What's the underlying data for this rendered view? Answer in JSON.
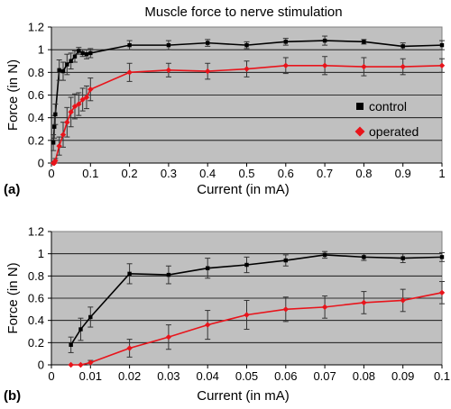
{
  "title": "Muscle force to nerve stimulation",
  "chart_data": [
    {
      "type": "line",
      "panel_label": "(a)",
      "title": "Muscle force to nerve stimulation",
      "xlabel": "Current (in mA)",
      "ylabel": "Force (in N)",
      "xlim": [
        0,
        1
      ],
      "ylim": [
        0,
        1.2
      ],
      "xticks": [
        "0",
        "0.1",
        "0.2",
        "0.3",
        "0.4",
        "0.5",
        "0.6",
        "0.7",
        "0.8",
        "0.9",
        "1"
      ],
      "yticks": [
        "0",
        "0.2",
        "0.4",
        "0.6",
        "0.8",
        "1",
        "1.2"
      ],
      "grid": true,
      "legend_position": "right",
      "series": [
        {
          "name": "control",
          "color": "#000000",
          "marker": "square",
          "x": [
            0.005,
            0.0075,
            0.01,
            0.02,
            0.03,
            0.04,
            0.05,
            0.06,
            0.07,
            0.08,
            0.09,
            0.1,
            0.2,
            0.3,
            0.4,
            0.5,
            0.6,
            0.7,
            0.8,
            0.9,
            1.0
          ],
          "y": [
            0.18,
            0.32,
            0.43,
            0.82,
            0.81,
            0.87,
            0.9,
            0.94,
            0.99,
            0.97,
            0.96,
            0.97,
            1.04,
            1.04,
            1.06,
            1.04,
            1.07,
            1.08,
            1.07,
            1.03,
            1.04
          ],
          "err": [
            0.07,
            0.1,
            0.09,
            0.09,
            0.08,
            0.09,
            0.07,
            0.05,
            0.03,
            0.03,
            0.04,
            0.04,
            0.04,
            0.04,
            0.03,
            0.03,
            0.03,
            0.04,
            0.02,
            0.03,
            0.04
          ]
        },
        {
          "name": "operated",
          "color": "#e8141b",
          "marker": "diamond",
          "x": [
            0.005,
            0.0075,
            0.01,
            0.02,
            0.03,
            0.04,
            0.05,
            0.06,
            0.07,
            0.08,
            0.09,
            0.1,
            0.2,
            0.3,
            0.4,
            0.5,
            0.6,
            0.7,
            0.8,
            0.9,
            1.0
          ],
          "y": [
            0.0,
            0.0,
            0.02,
            0.15,
            0.25,
            0.36,
            0.45,
            0.5,
            0.52,
            0.56,
            0.58,
            0.65,
            0.8,
            0.82,
            0.81,
            0.83,
            0.86,
            0.86,
            0.85,
            0.85,
            0.86
          ],
          "err": [
            0.0,
            0.0,
            0.02,
            0.08,
            0.11,
            0.13,
            0.13,
            0.11,
            0.1,
            0.1,
            0.1,
            0.1,
            0.08,
            0.06,
            0.07,
            0.07,
            0.07,
            0.08,
            0.08,
            0.07,
            0.06
          ]
        }
      ]
    },
    {
      "type": "line",
      "panel_label": "(b)",
      "xlabel": "Current (in mA)",
      "ylabel": "Force (in N)",
      "xlim": [
        0,
        0.1
      ],
      "ylim": [
        0,
        1.2
      ],
      "xticks": [
        "0",
        "0.01",
        "0.02",
        "0.03",
        "0.04",
        "0.05",
        "0.06",
        "0.07",
        "0.08",
        "0.09",
        "0.1"
      ],
      "yticks": [
        "0",
        "0.2",
        "0.4",
        "0.6",
        "0.8",
        "1",
        "1.2"
      ],
      "grid": true,
      "series": [
        {
          "name": "control",
          "color": "#000000",
          "marker": "square",
          "x": [
            0.005,
            0.0075,
            0.01,
            0.02,
            0.03,
            0.04,
            0.05,
            0.06,
            0.07,
            0.08,
            0.09,
            0.1
          ],
          "y": [
            0.18,
            0.32,
            0.43,
            0.82,
            0.81,
            0.87,
            0.9,
            0.94,
            0.99,
            0.97,
            0.96,
            0.97
          ],
          "err": [
            0.07,
            0.1,
            0.09,
            0.09,
            0.08,
            0.09,
            0.07,
            0.05,
            0.03,
            0.03,
            0.04,
            0.04
          ]
        },
        {
          "name": "operated",
          "color": "#e8141b",
          "marker": "diamond",
          "x": [
            0.005,
            0.0075,
            0.01,
            0.02,
            0.03,
            0.04,
            0.05,
            0.06,
            0.07,
            0.08,
            0.09,
            0.1
          ],
          "y": [
            0.0,
            0.0,
            0.02,
            0.15,
            0.25,
            0.36,
            0.45,
            0.5,
            0.52,
            0.56,
            0.58,
            0.65
          ],
          "err": [
            0.0,
            0.0,
            0.02,
            0.08,
            0.11,
            0.13,
            0.13,
            0.11,
            0.1,
            0.1,
            0.1,
            0.1
          ]
        }
      ]
    }
  ]
}
